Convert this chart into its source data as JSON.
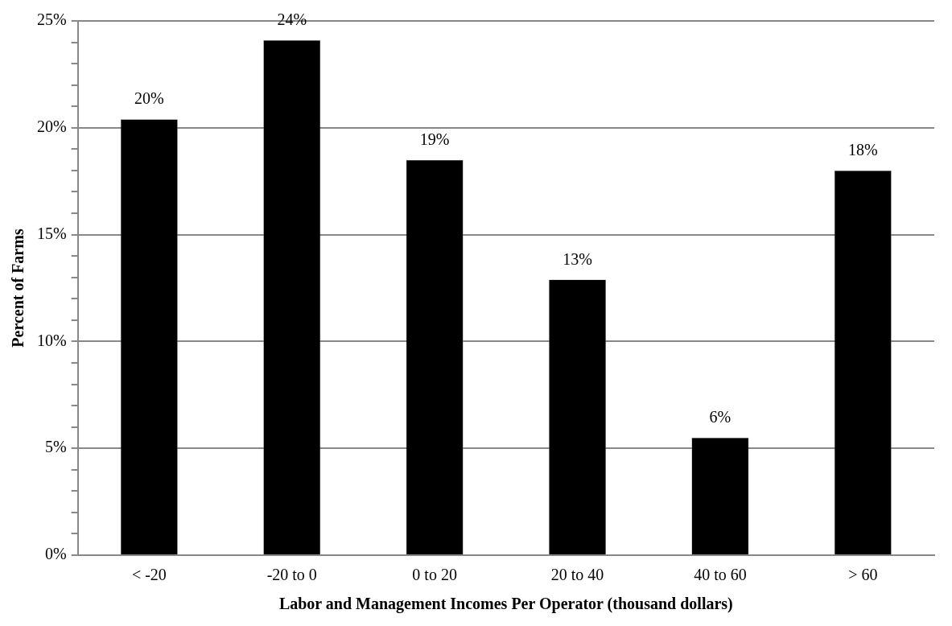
{
  "chart_data": {
    "type": "bar",
    "xlabel": "Labor and Management Incomes Per Operator (thousand dollars)",
    "ylabel": "Percent of Farms",
    "categories": [
      "< -20",
      "-20 to 0",
      "0 to 20",
      "20 to 40",
      "40 to 60",
      "> 60"
    ],
    "values": [
      20.4,
      24.1,
      18.5,
      12.9,
      5.5,
      18.0
    ],
    "value_labels": [
      "20%",
      "24%",
      "19%",
      "13%",
      "6%",
      "18%"
    ],
    "color": "#000000",
    "ylim": [
      0,
      25
    ],
    "yticks": [
      {
        "value": 0,
        "label": "0%"
      },
      {
        "value": 1,
        "label": null
      },
      {
        "value": 2,
        "label": null
      },
      {
        "value": 3,
        "label": null
      },
      {
        "value": 4,
        "label": null
      },
      {
        "value": 5,
        "label": "5%"
      },
      {
        "value": 6,
        "label": null
      },
      {
        "value": 7,
        "label": null
      },
      {
        "value": 8,
        "label": null
      },
      {
        "value": 9,
        "label": null
      },
      {
        "value": 10,
        "label": "10%"
      },
      {
        "value": 11,
        "label": null
      },
      {
        "value": 12,
        "label": null
      },
      {
        "value": 13,
        "label": null
      },
      {
        "value": 14,
        "label": null
      },
      {
        "value": 15,
        "label": "15%"
      },
      {
        "value": 16,
        "label": null
      },
      {
        "value": 17,
        "label": null
      },
      {
        "value": 18,
        "label": null
      },
      {
        "value": 19,
        "label": null
      },
      {
        "value": 20,
        "label": "20%"
      },
      {
        "value": 21,
        "label": null
      },
      {
        "value": 22,
        "label": null
      },
      {
        "value": 23,
        "label": null
      },
      {
        "value": 24,
        "label": null
      },
      {
        "value": 25,
        "label": "25%"
      }
    ],
    "grid": "y",
    "legend": false
  }
}
